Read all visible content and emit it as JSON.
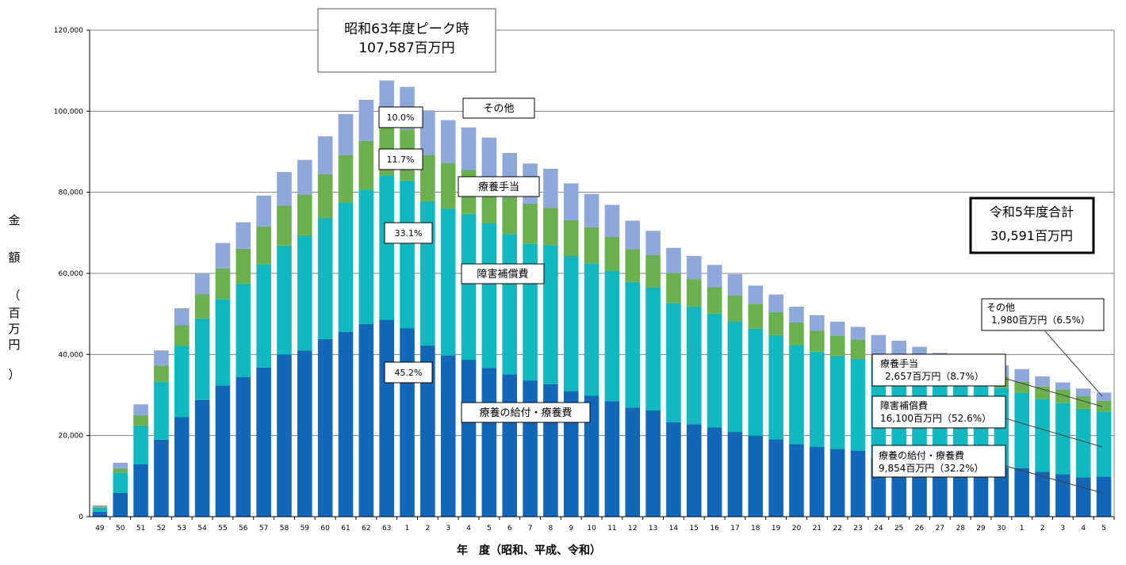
{
  "chart_data": {
    "type": "bar",
    "stacked": true,
    "categories": [
      "49",
      "50",
      "51",
      "52",
      "53",
      "54",
      "55",
      "56",
      "57",
      "58",
      "59",
      "60",
      "61",
      "62",
      "63",
      "1",
      "2",
      "3",
      "4",
      "5",
      "6",
      "7",
      "8",
      "9",
      "10",
      "11",
      "12",
      "13",
      "14",
      "15",
      "16",
      "17",
      "18",
      "19",
      "20",
      "21",
      "22",
      "23",
      "24",
      "25",
      "26",
      "27",
      "28",
      "29",
      "30",
      "1",
      "2",
      "3",
      "4",
      "5"
    ],
    "totals": [
      2800,
      13300,
      27700,
      41000,
      51400,
      60000,
      67500,
      72600,
      79200,
      85000,
      88000,
      93800,
      99300,
      102800,
      107587,
      106000,
      100200,
      97800,
      96000,
      93500,
      89700,
      87100,
      85800,
      82200,
      79600,
      76900,
      73000,
      70500,
      66300,
      64300,
      62100,
      59800,
      57000,
      54800,
      51800,
      49700,
      48100,
      46800,
      44800,
      43400,
      41900,
      40400,
      39000,
      37800,
      37300,
      36400,
      34600,
      33100,
      31600,
      30591
    ],
    "series": [
      {
        "name": "療養の給付・療養費",
        "color": "#1466b8",
        "values": [
          1200,
          5900,
          12900,
          19000,
          24600,
          28800,
          32400,
          34400,
          36800,
          40000,
          41000,
          43800,
          45600,
          47500,
          48600,
          46500,
          42200,
          39800,
          38700,
          36700,
          35100,
          33600,
          32700,
          31000,
          29800,
          28500,
          26900,
          26200,
          23300,
          22800,
          22000,
          20900,
          20000,
          19100,
          17900,
          17200,
          16700,
          16300,
          14700,
          14200,
          13800,
          13300,
          12800,
          12300,
          12100,
          12000,
          11100,
          10500,
          9700,
          9854
        ]
      },
      {
        "name": "障害補償費",
        "color": "#10b8c0",
        "values": [
          1000,
          5000,
          9600,
          14300,
          17600,
          20100,
          21300,
          23100,
          25500,
          26900,
          28400,
          29900,
          31800,
          33200,
          35600,
          36400,
          35600,
          36200,
          36000,
          35700,
          34600,
          33700,
          34300,
          33300,
          32700,
          32200,
          31000,
          30400,
          29400,
          29000,
          28100,
          27300,
          26400,
          25700,
          24400,
          23500,
          23000,
          22600,
          23300,
          22600,
          22100,
          21700,
          21400,
          21100,
          19700,
          18500,
          17900,
          17600,
          16900,
          16100
        ]
      },
      {
        "name": "療養手当",
        "color": "#6ab04c",
        "values": [
          300,
          1000,
          2500,
          4000,
          5000,
          6000,
          7500,
          8600,
          9300,
          9800,
          10100,
          10800,
          11800,
          12000,
          12600,
          12600,
          11400,
          11300,
          10800,
          10000,
          9100,
          9900,
          9200,
          8800,
          8900,
          8300,
          8100,
          7900,
          7400,
          6800,
          6500,
          6400,
          6100,
          5700,
          5600,
          5200,
          5000,
          4800,
          1500,
          1600,
          2100,
          2300,
          2500,
          2600,
          2800,
          2800,
          3100,
          3300,
          3100,
          2657
        ]
      },
      {
        "name": "その他",
        "color": "#8ea8dc",
        "values": [
          300,
          1400,
          2700,
          3700,
          4200,
          5100,
          6300,
          6500,
          7600,
          8300,
          8500,
          9300,
          10100,
          10100,
          10787,
          10500,
          11000,
          10500,
          10500,
          11100,
          10900,
          9900,
          9600,
          9100,
          8200,
          7900,
          7000,
          6000,
          6200,
          5700,
          5500,
          5200,
          4500,
          4300,
          3900,
          3800,
          3400,
          3100,
          5300,
          5000,
          3900,
          3100,
          2300,
          1800,
          2700,
          3100,
          2500,
          1700,
          1900,
          1980
        ]
      }
    ],
    "ylim": [
      0,
      120000
    ],
    "yticks": [
      0,
      20000,
      40000,
      60000,
      80000,
      100000,
      120000
    ],
    "ytick_labels": [
      "0",
      "20,000",
      "40,000",
      "60,000",
      "80,000",
      "100,000",
      "120,000"
    ],
    "ylabel_chars": [
      "金",
      "額",
      "（",
      "百",
      "万",
      "円",
      "）"
    ],
    "xlabel": "年　度（昭和、平成、令和）",
    "grid": true,
    "annotations": {
      "peak_line1": "昭和63年度ピーク時",
      "peak_line2": "107,587百万円",
      "total_line1": "令和5年度合計",
      "total_line2": "30,591百万円",
      "pct_other": "10.0%",
      "pct_allowance": "11.7%",
      "pct_disability": "33.1%",
      "pct_medical": "45.2%",
      "label_other": "その他",
      "label_allowance": "療養手当",
      "label_disability": "障害補償費",
      "label_medical": "療養の給付・療養費",
      "r5_other_name": "その他",
      "r5_other_val": "1,980百万円（6.5%）",
      "r5_allow_name": "療養手当",
      "r5_allow_val": "2,657百万円（8.7%）",
      "r5_dis_name": "障害補償費",
      "r5_dis_val": "16,100百万円（52.6%）",
      "r5_med_name": "療養の給付・療養費",
      "r5_med_val": "9,854百万円（32.2%）"
    }
  }
}
